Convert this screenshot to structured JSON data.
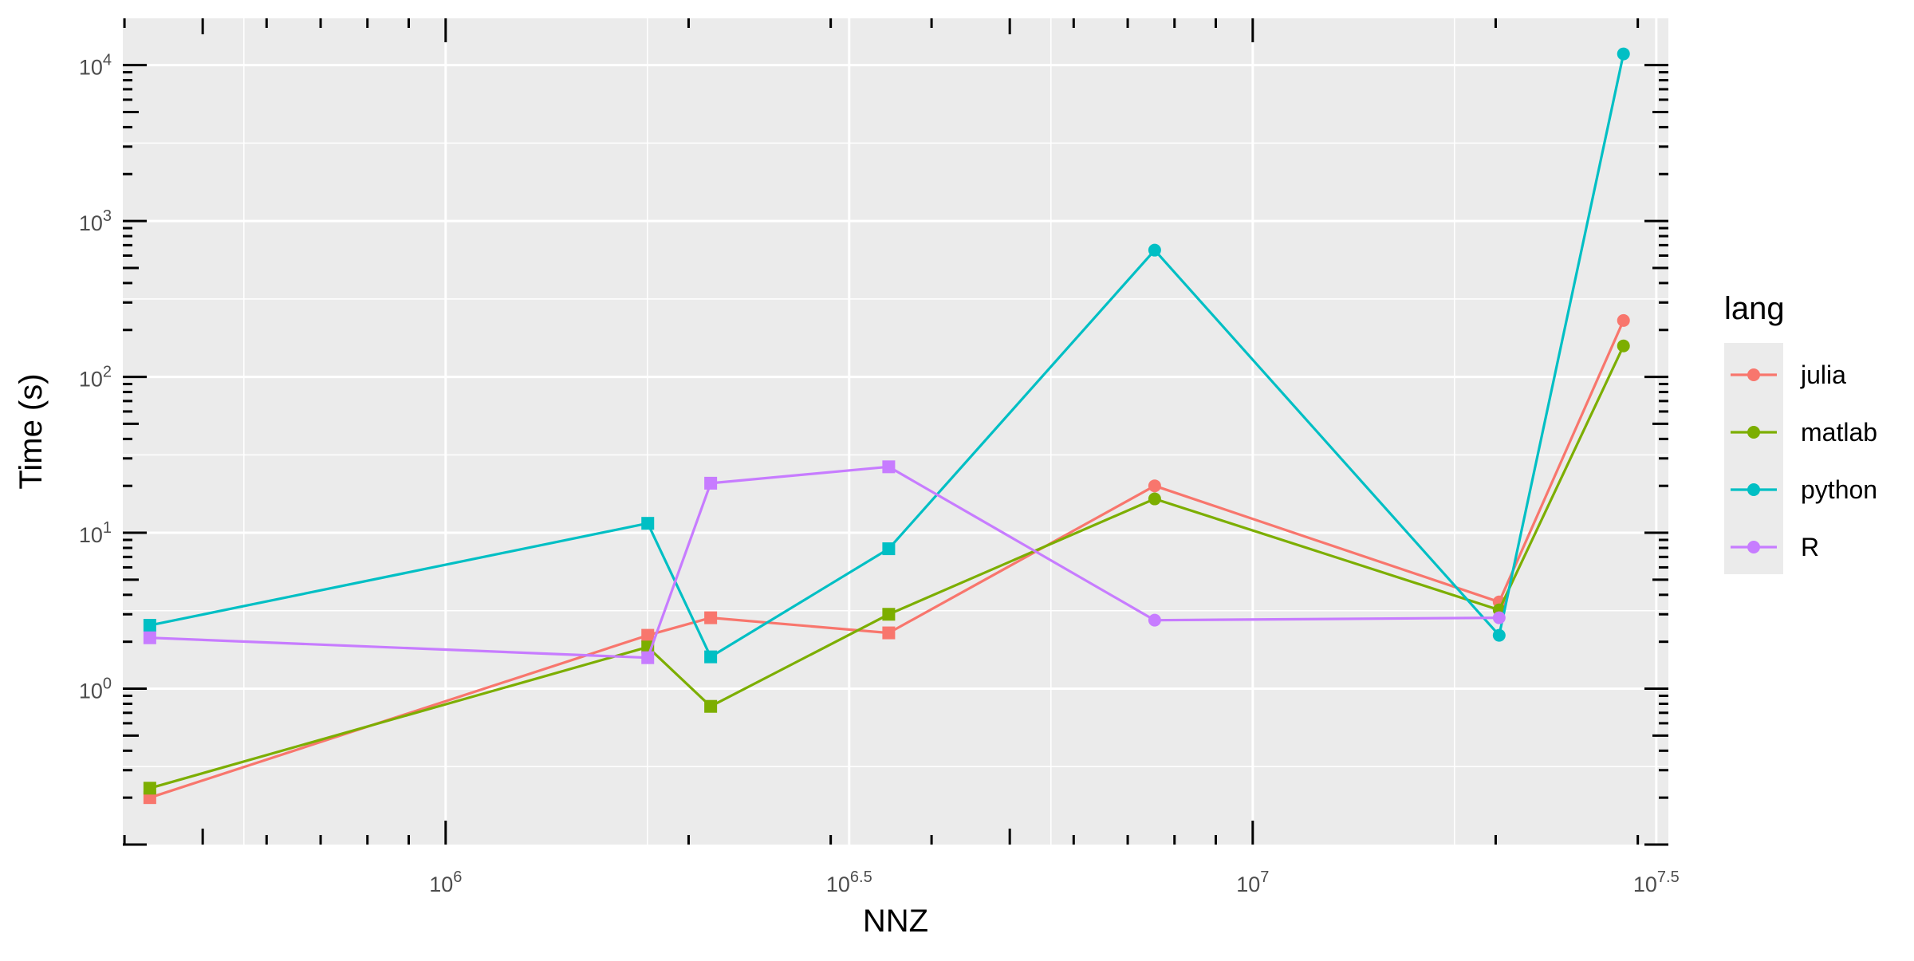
{
  "chart_data": {
    "type": "line",
    "title": "",
    "xlabel": "NNZ",
    "ylabel": "Time (s)",
    "x_scale": "log10",
    "y_scale": "log10",
    "xlim": [
      400000,
      32000000
    ],
    "ylim": [
      0.08,
      15000
    ],
    "grid": true,
    "x_ticks": [
      {
        "value": 1000000,
        "base": "10",
        "exp": "6"
      },
      {
        "value": 3162278,
        "base": "10",
        "exp": "6.5"
      },
      {
        "value": 10000000,
        "base": "10",
        "exp": "7"
      },
      {
        "value": 31622777,
        "base": "10",
        "exp": "7.5"
      }
    ],
    "y_ticks": [
      {
        "value": 1,
        "base": "10",
        "exp": "0"
      },
      {
        "value": 10,
        "base": "10",
        "exp": "1"
      },
      {
        "value": 100,
        "base": "10",
        "exp": "2"
      },
      {
        "value": 1000,
        "base": "10",
        "exp": "3"
      },
      {
        "value": 10000,
        "base": "10",
        "exp": "4"
      }
    ],
    "legend": {
      "title": "lang",
      "position": "right"
    },
    "series": [
      {
        "name": "julia",
        "color": "#F8766D",
        "points": [
          {
            "x": 430000,
            "y": 0.2,
            "marker": "square"
          },
          {
            "x": 1780000,
            "y": 2.2,
            "marker": "square"
          },
          {
            "x": 2130000,
            "y": 2.85,
            "marker": "square"
          },
          {
            "x": 3540000,
            "y": 2.28,
            "marker": "square"
          },
          {
            "x": 7560000,
            "y": 20,
            "marker": "circle"
          },
          {
            "x": 20200000,
            "y": 3.6,
            "marker": "circle"
          },
          {
            "x": 28800000,
            "y": 230,
            "marker": "circle"
          }
        ]
      },
      {
        "name": "matlab",
        "color": "#7CAE00",
        "points": [
          {
            "x": 430000,
            "y": 0.23,
            "marker": "square"
          },
          {
            "x": 1780000,
            "y": 1.85,
            "marker": "square"
          },
          {
            "x": 2130000,
            "y": 0.77,
            "marker": "square"
          },
          {
            "x": 3540000,
            "y": 3.0,
            "marker": "square"
          },
          {
            "x": 7560000,
            "y": 16.5,
            "marker": "circle"
          },
          {
            "x": 20200000,
            "y": 3.2,
            "marker": "circle"
          },
          {
            "x": 28800000,
            "y": 158,
            "marker": "circle"
          }
        ]
      },
      {
        "name": "python",
        "color": "#00BFC4",
        "points": [
          {
            "x": 430000,
            "y": 2.55,
            "marker": "square"
          },
          {
            "x": 1780000,
            "y": 11.5,
            "marker": "square"
          },
          {
            "x": 2130000,
            "y": 1.6,
            "marker": "square"
          },
          {
            "x": 3540000,
            "y": 7.9,
            "marker": "square"
          },
          {
            "x": 7560000,
            "y": 650,
            "marker": "circle"
          },
          {
            "x": 20200000,
            "y": 2.2,
            "marker": "circle"
          },
          {
            "x": 28800000,
            "y": 11800,
            "marker": "circle"
          }
        ]
      },
      {
        "name": "R",
        "color": "#C77CFF",
        "points": [
          {
            "x": 430000,
            "y": 2.12,
            "marker": "square"
          },
          {
            "x": 1780000,
            "y": 1.58,
            "marker": "square"
          },
          {
            "x": 2130000,
            "y": 20.8,
            "marker": "square"
          },
          {
            "x": 3540000,
            "y": 26.5,
            "marker": "square"
          },
          {
            "x": 7560000,
            "y": 2.75,
            "marker": "circle"
          },
          {
            "x": 20200000,
            "y": 2.85,
            "marker": "circle"
          }
        ]
      }
    ]
  }
}
